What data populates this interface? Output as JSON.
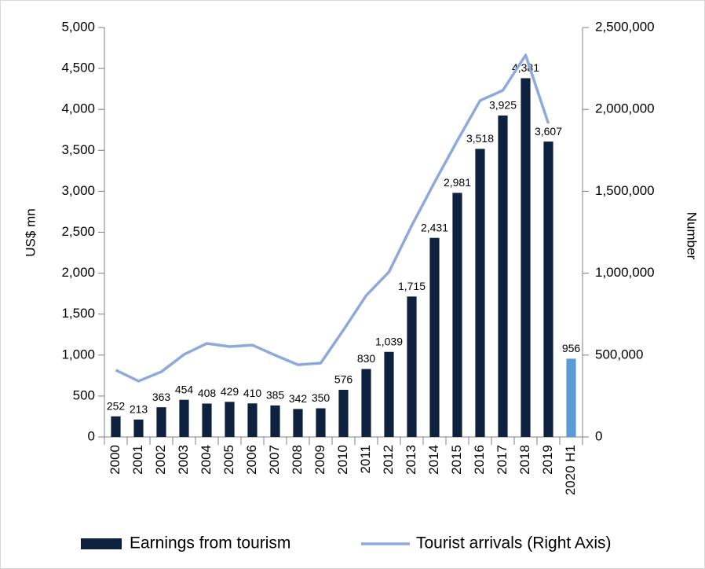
{
  "chart_data": {
    "type": "bar-line",
    "categories": [
      "2000",
      "2001",
      "2002",
      "2003",
      "2004",
      "2005",
      "2006",
      "2007",
      "2008",
      "2009",
      "2010",
      "2011",
      "2012",
      "2013",
      "2014",
      "2015",
      "2016",
      "2017",
      "2018",
      "2019",
      "2020 H1"
    ],
    "series": [
      {
        "name": "Earnings from tourism",
        "type": "bar",
        "color": "#0e2240",
        "colors": [
          "#0e2240",
          "#0e2240",
          "#0e2240",
          "#0e2240",
          "#0e2240",
          "#0e2240",
          "#0e2240",
          "#0e2240",
          "#0e2240",
          "#0e2240",
          "#0e2240",
          "#0e2240",
          "#0e2240",
          "#0e2240",
          "#0e2240",
          "#0e2240",
          "#0e2240",
          "#0e2240",
          "#0e2240",
          "#0e2240",
          "#5b9bd5"
        ],
        "values": [
          252,
          213,
          363,
          454,
          408,
          429,
          410,
          385,
          342,
          350,
          576,
          830,
          1039,
          1715,
          2431,
          2981,
          3518,
          3925,
          4381,
          3607,
          956
        ],
        "value_labels": [
          "252",
          "213",
          "363",
          "454",
          "408",
          "429",
          "410",
          "385",
          "342",
          "350",
          "576",
          "830",
          "1,039",
          "1,715",
          "2,431",
          "2,981",
          "3,518",
          "3,925",
          "4,381",
          "3,607",
          "956"
        ]
      },
      {
        "name": "Tourist arrivals (Right Axis)",
        "type": "line",
        "color": "#8eaadb",
        "axis": "y2",
        "values": [
          408000,
          341000,
          398000,
          504000,
          571000,
          552000,
          561000,
          499000,
          441000,
          451000,
          653000,
          864000,
          1008000,
          1291000,
          1555000,
          1809000,
          2054000,
          2116000,
          2332000,
          1914000,
          null
        ]
      }
    ],
    "y_label": "US$ mn",
    "y2_label": "Number",
    "ylim": [
      0,
      5000
    ],
    "yticks": [
      0,
      500,
      {
        "value": 1000,
        "label": "1,000"
      },
      {
        "value": 1500,
        "label": "1,500"
      },
      {
        "value": 2000,
        "label": "2,000"
      },
      {
        "value": 2500,
        "label": "2,500"
      },
      {
        "value": 3000,
        "label": "3,000"
      },
      {
        "value": 3500,
        "label": "3,500"
      },
      {
        "value": 4000,
        "label": "4,000"
      },
      {
        "value": 4500,
        "label": "4,500"
      },
      {
        "value": 5000,
        "label": "5,000"
      }
    ],
    "y2lim": [
      0,
      2500000
    ],
    "y2ticks": [
      0,
      {
        "value": 500000,
        "label": "500,000"
      },
      {
        "value": 1000000,
        "label": "1,000,000"
      },
      {
        "value": 1500000,
        "label": "1,500,000"
      },
      {
        "value": 2000000,
        "label": "2,000,000"
      },
      {
        "value": 2500000,
        "label": "2,500,000"
      }
    ],
    "legend": "bottom"
  }
}
